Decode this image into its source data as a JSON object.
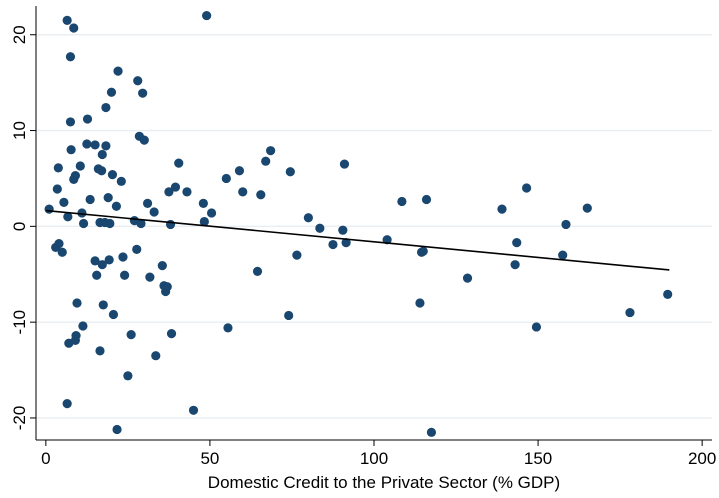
{
  "chart_data": {
    "type": "scatter",
    "title": "",
    "xlabel": "Domestic Credit to the Private Sector (% GDP)",
    "ylabel": "",
    "xlim": [
      -3,
      203
    ],
    "ylim": [
      -22.3,
      23
    ],
    "x_ticks": [
      0,
      50,
      100,
      150,
      200
    ],
    "y_ticks": [
      -20,
      -10,
      0,
      10,
      20
    ],
    "grid": true,
    "legend": "none",
    "colors": {
      "points": "#1a476f",
      "fit_line": "#000000",
      "grid": "#e8eef2"
    },
    "fit_line": {
      "x": [
        0,
        190
      ],
      "y": [
        1.65,
        -4.55
      ]
    },
    "points": [
      [
        1,
        1.8
      ],
      [
        3,
        -2.2
      ],
      [
        3.5,
        3.9
      ],
      [
        3.8,
        6.1
      ],
      [
        4,
        -1.8
      ],
      [
        5,
        -2.7
      ],
      [
        5.5,
        2.5
      ],
      [
        6.5,
        21.5
      ],
      [
        6.5,
        -18.5
      ],
      [
        6.7,
        1.0
      ],
      [
        7,
        -12.2
      ],
      [
        7.5,
        17.7
      ],
      [
        7.5,
        10.9
      ],
      [
        7.7,
        8.0
      ],
      [
        8.5,
        20.7
      ],
      [
        8.5,
        4.9
      ],
      [
        9,
        5.3
      ],
      [
        9,
        -11.9
      ],
      [
        9.2,
        -11.4
      ],
      [
        9.5,
        -8.0
      ],
      [
        10.5,
        6.3
      ],
      [
        11,
        1.4
      ],
      [
        11.3,
        -10.4
      ],
      [
        11.5,
        0.3
      ],
      [
        12.5,
        8.6
      ],
      [
        12.7,
        11.2
      ],
      [
        13.5,
        2.8
      ],
      [
        15,
        8.5
      ],
      [
        15,
        -3.6
      ],
      [
        15.5,
        -5.1
      ],
      [
        16,
        6.0
      ],
      [
        16.5,
        0.4
      ],
      [
        16.5,
        -13.0
      ],
      [
        17,
        5.8
      ],
      [
        17.2,
        7.5
      ],
      [
        17.2,
        -4.0
      ],
      [
        17.5,
        -8.2
      ],
      [
        18,
        0.4
      ],
      [
        18.3,
        8.4
      ],
      [
        18.3,
        12.4
      ],
      [
        19,
        3.0
      ],
      [
        19.3,
        -3.5
      ],
      [
        19.5,
        0.3
      ],
      [
        20,
        14.0
      ],
      [
        20.3,
        5.4
      ],
      [
        20.6,
        -9.2
      ],
      [
        21.5,
        2.1
      ],
      [
        21.7,
        -21.2
      ],
      [
        22,
        16.2
      ],
      [
        23,
        4.7
      ],
      [
        23.5,
        -3.2
      ],
      [
        24,
        -5.1
      ],
      [
        25,
        -15.6
      ],
      [
        26,
        -11.3
      ],
      [
        27,
        0.6
      ],
      [
        27.7,
        -2.4
      ],
      [
        28,
        15.2
      ],
      [
        28.5,
        9.4
      ],
      [
        29,
        0.3
      ],
      [
        29.5,
        13.9
      ],
      [
        30,
        9.0
      ],
      [
        31,
        2.4
      ],
      [
        31.7,
        -5.3
      ],
      [
        33,
        1.5
      ],
      [
        33.5,
        -13.5
      ],
      [
        35.5,
        -4.1
      ],
      [
        36,
        -6.2
      ],
      [
        36.5,
        -6.8
      ],
      [
        37,
        -6.3
      ],
      [
        37.5,
        3.6
      ],
      [
        38,
        0.2
      ],
      [
        38.3,
        -11.2
      ],
      [
        39.5,
        4.1
      ],
      [
        40.5,
        6.6
      ],
      [
        43,
        3.6
      ],
      [
        45,
        -19.2
      ],
      [
        48,
        2.4
      ],
      [
        48.3,
        0.5
      ],
      [
        49,
        22.0
      ],
      [
        50.5,
        1.4
      ],
      [
        55,
        5.0
      ],
      [
        55.5,
        -10.6
      ],
      [
        59,
        5.8
      ],
      [
        60,
        3.6
      ],
      [
        64.5,
        -4.7
      ],
      [
        65.5,
        3.3
      ],
      [
        67,
        6.8
      ],
      [
        68.5,
        7.9
      ],
      [
        74,
        -9.3
      ],
      [
        74.5,
        5.7
      ],
      [
        76.5,
        -3.0
      ],
      [
        80,
        0.9
      ],
      [
        83.5,
        -0.2
      ],
      [
        87.5,
        -1.9
      ],
      [
        90.5,
        -0.4
      ],
      [
        91,
        6.5
      ],
      [
        91.5,
        -1.7
      ],
      [
        104,
        -1.4
      ],
      [
        108.5,
        2.6
      ],
      [
        114,
        -8.0
      ],
      [
        114.5,
        -2.7
      ],
      [
        115,
        -2.6
      ],
      [
        116,
        2.8
      ],
      [
        117.5,
        -21.5
      ],
      [
        128.5,
        -5.4
      ],
      [
        139,
        1.8
      ],
      [
        143,
        -4.0
      ],
      [
        143.5,
        -1.7
      ],
      [
        146.5,
        4.0
      ],
      [
        149.5,
        -10.5
      ],
      [
        157.5,
        -3.0
      ],
      [
        158.5,
        0.2
      ],
      [
        165,
        1.9
      ],
      [
        178,
        -9.0
      ],
      [
        189.5,
        -7.1
      ]
    ]
  }
}
